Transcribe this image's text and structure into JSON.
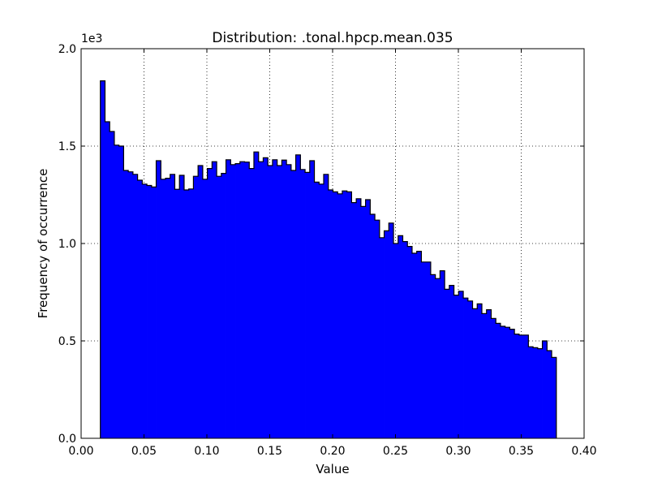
{
  "chart_data": {
    "type": "histogram",
    "title": "Distribution: .tonal.hpcp.mean.035",
    "xlabel": "Value",
    "ylabel": "Frequency of occurrence",
    "y_offset_label": "1e3",
    "xlim": [
      0.0,
      0.4
    ],
    "ylim": [
      0,
      2000
    ],
    "x_ticks": [
      0.0,
      0.05,
      0.1,
      0.15,
      0.2,
      0.25,
      0.3,
      0.35,
      0.4
    ],
    "x_tick_labels": [
      "0.00",
      "0.05",
      "0.10",
      "0.15",
      "0.20",
      "0.25",
      "0.30",
      "0.35",
      "0.40"
    ],
    "y_ticks": [
      0,
      500,
      1000,
      1500,
      2000
    ],
    "y_tick_labels": [
      "0.0",
      "0.5",
      "1.0",
      "1.5",
      "2.0"
    ],
    "grid": true,
    "bar_color": "#0000ff",
    "edge_color": "#000000",
    "bin_start": 0.0153,
    "bin_width": 0.0037,
    "values": [
      1835,
      1625,
      1575,
      1505,
      1500,
      1375,
      1368,
      1355,
      1325,
      1305,
      1298,
      1290,
      1425,
      1330,
      1335,
      1355,
      1278,
      1350,
      1275,
      1280,
      1345,
      1400,
      1330,
      1385,
      1420,
      1345,
      1360,
      1430,
      1405,
      1410,
      1420,
      1418,
      1385,
      1470,
      1420,
      1440,
      1400,
      1430,
      1400,
      1428,
      1405,
      1375,
      1455,
      1380,
      1365,
      1425,
      1315,
      1305,
      1355,
      1275,
      1265,
      1255,
      1270,
      1265,
      1210,
      1230,
      1190,
      1225,
      1150,
      1120,
      1030,
      1065,
      1105,
      1000,
      1040,
      1010,
      985,
      950,
      960,
      905,
      905,
      840,
      820,
      860,
      765,
      785,
      735,
      755,
      720,
      705,
      665,
      690,
      640,
      660,
      615,
      590,
      575,
      570,
      560,
      535,
      530,
      530,
      470,
      465,
      460,
      500,
      450,
      415
    ]
  }
}
